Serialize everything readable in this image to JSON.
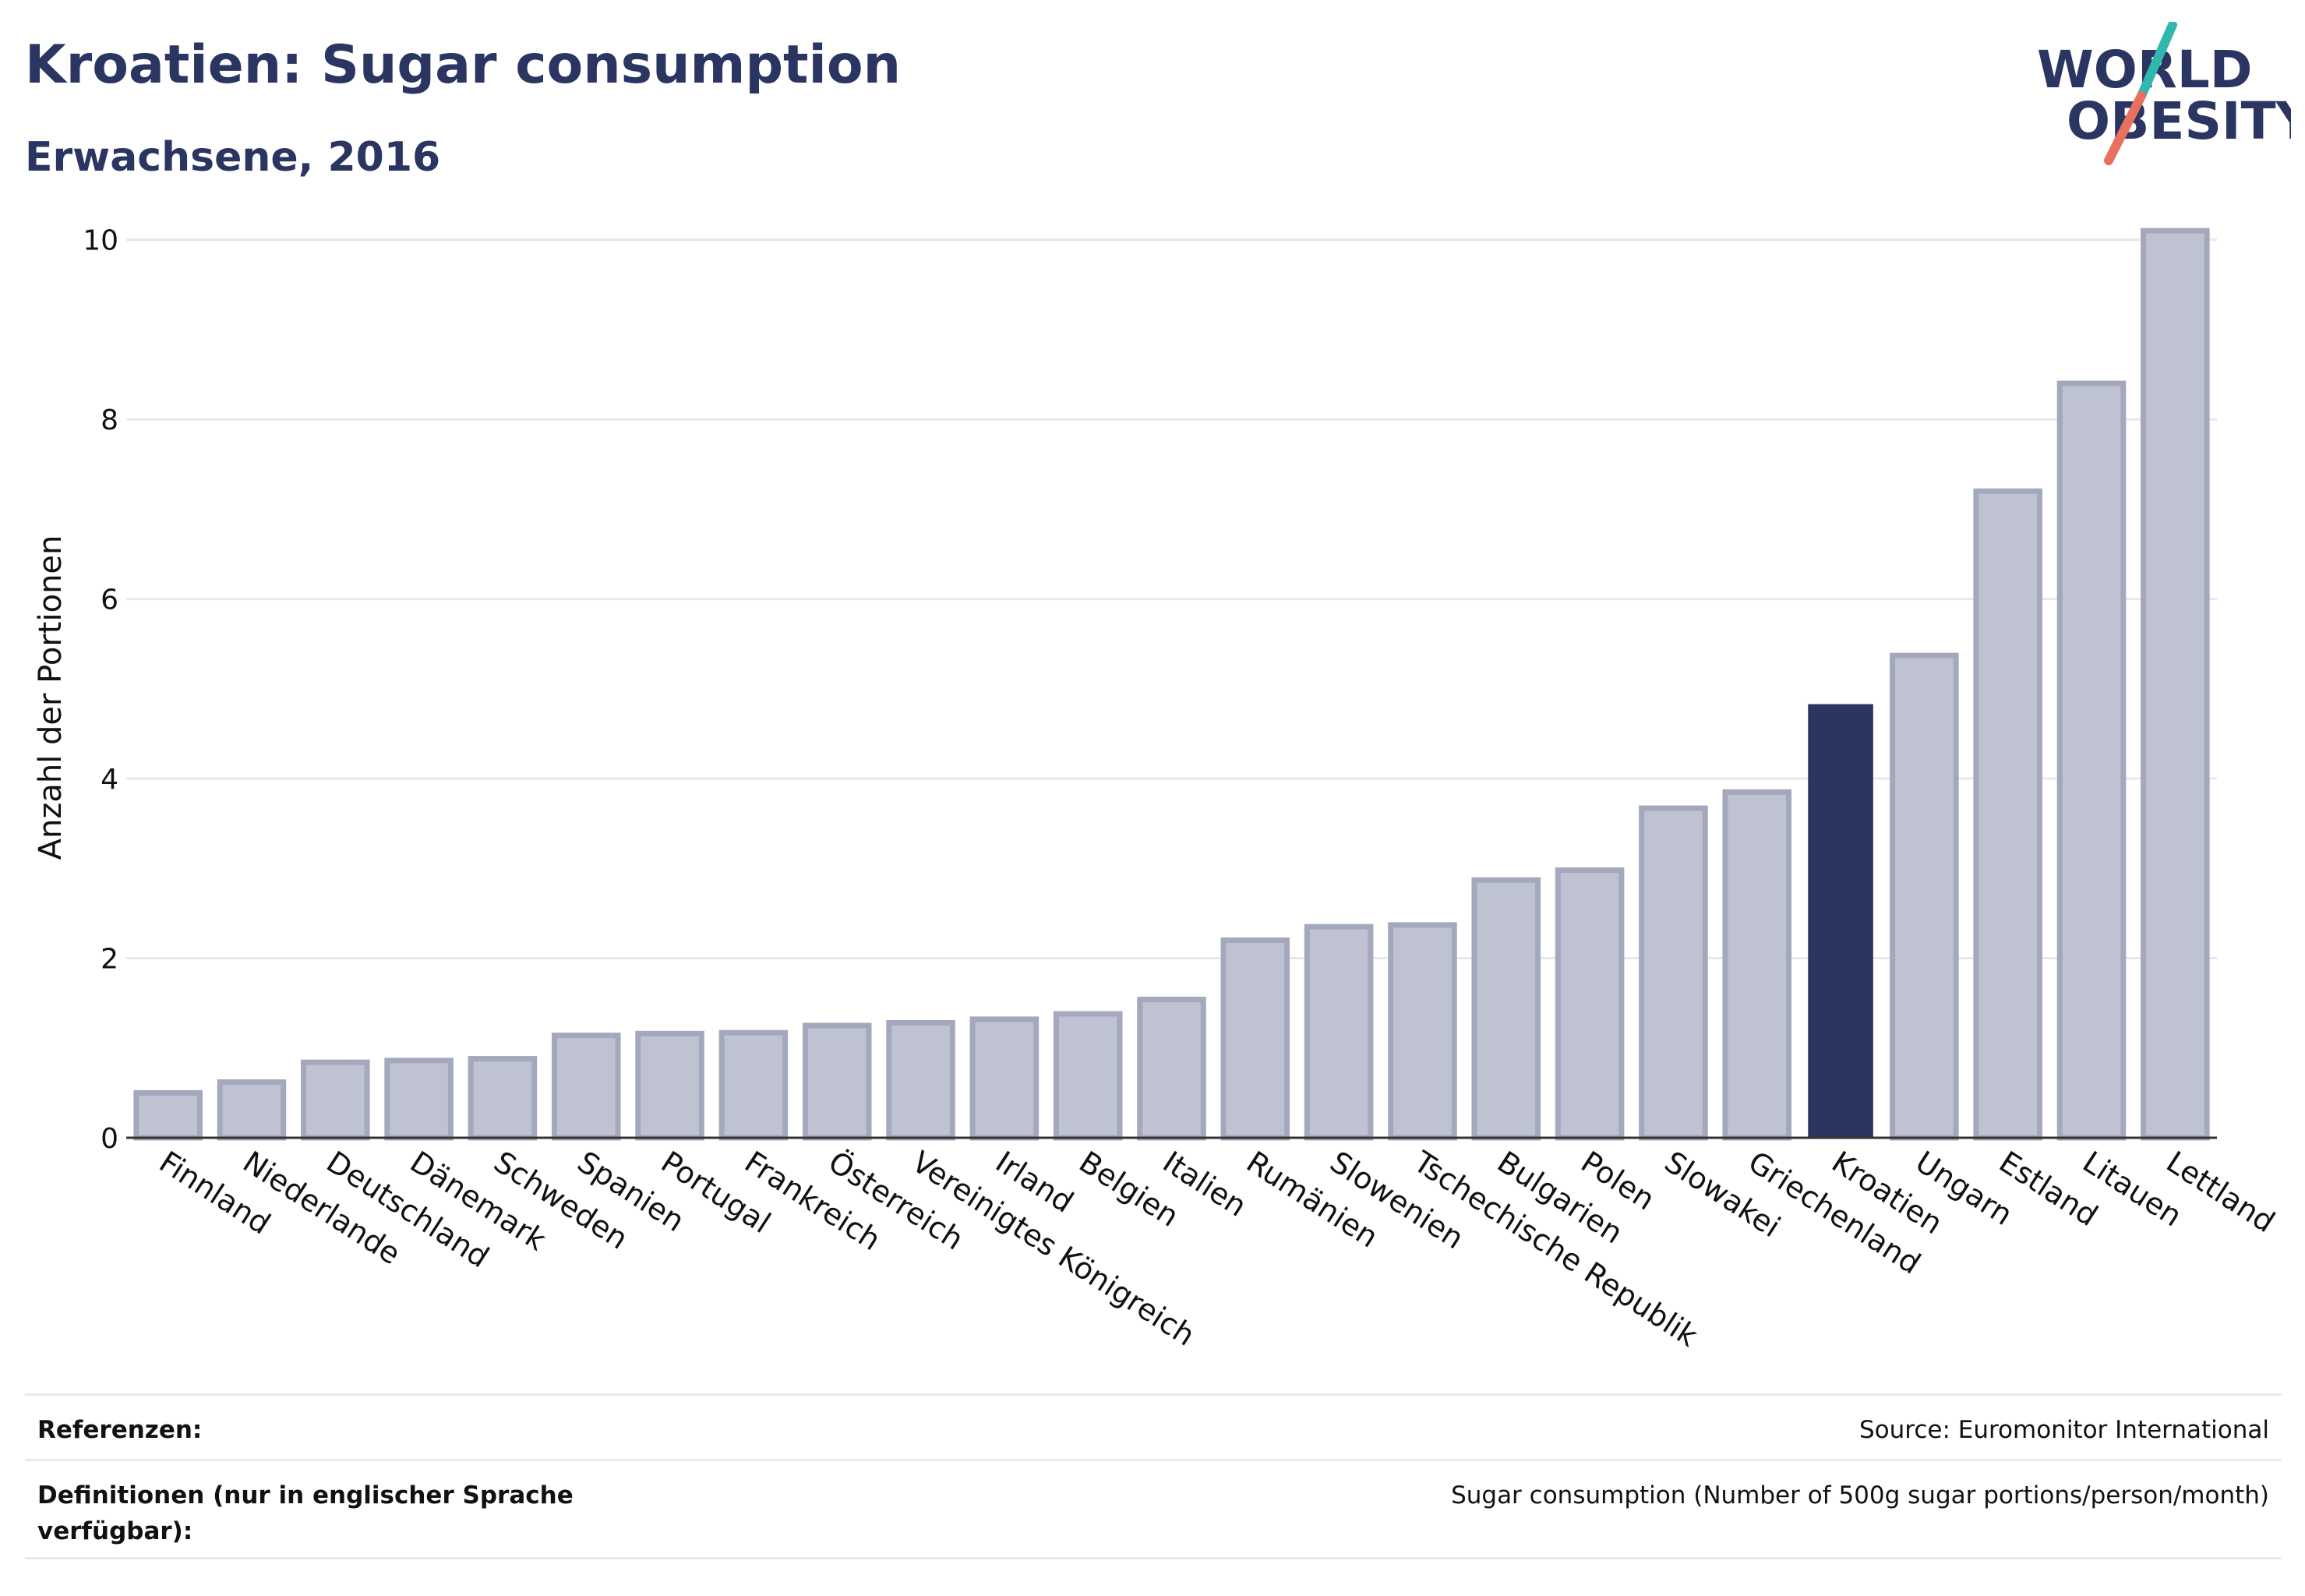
{
  "header": {
    "title": "Kroatien: Sugar consumption",
    "subtitle": "Erwachsene, 2016"
  },
  "logo": {
    "line1": "WORLD",
    "line2": "OBESITY",
    "accent_teal": "#2fb7b0",
    "accent_coral": "#e8705f"
  },
  "colors": {
    "bar": "#bec2d1",
    "bar_outline": "#a3a8bd",
    "highlight": "#2a3561",
    "grid": "#e6e8ee",
    "text": "#111111"
  },
  "chart_data": {
    "type": "bar",
    "ylabel": "Anzahl der Portionen",
    "xlabel": "",
    "ylim": [
      0,
      10.5
    ],
    "yticks": [
      0,
      2,
      4,
      6,
      8,
      10
    ],
    "grid": true,
    "highlight_category": "Kroatien",
    "categories": [
      "Finnland",
      "Niederlande",
      "Deutschland",
      "Dänemark",
      "Schweden",
      "Spanien",
      "Portugal",
      "Frankreich",
      "Österreich",
      "Vereinigtes Königreich",
      "Irland",
      "Belgien",
      "Italien",
      "Rumänien",
      "Slowenien",
      "Tschechische Republik",
      "Bulgarien",
      "Polen",
      "Slowakei",
      "Griechenland",
      "Kroatien",
      "Ungarn",
      "Estland",
      "Litauen",
      "Lettland"
    ],
    "values": [
      0.5,
      0.62,
      0.84,
      0.86,
      0.88,
      1.14,
      1.16,
      1.17,
      1.25,
      1.28,
      1.32,
      1.38,
      1.54,
      2.2,
      2.35,
      2.37,
      2.87,
      2.98,
      3.67,
      3.85,
      4.82,
      5.37,
      7.2,
      8.4,
      10.1
    ]
  },
  "footer": {
    "references_label": "Referenzen:",
    "references_value": "Source: Euromonitor International",
    "definitions_label": "Definitionen (nur in englischer Sprache verfügbar):",
    "definitions_value": "Sugar consumption (Number of 500g sugar portions/person/month)"
  }
}
